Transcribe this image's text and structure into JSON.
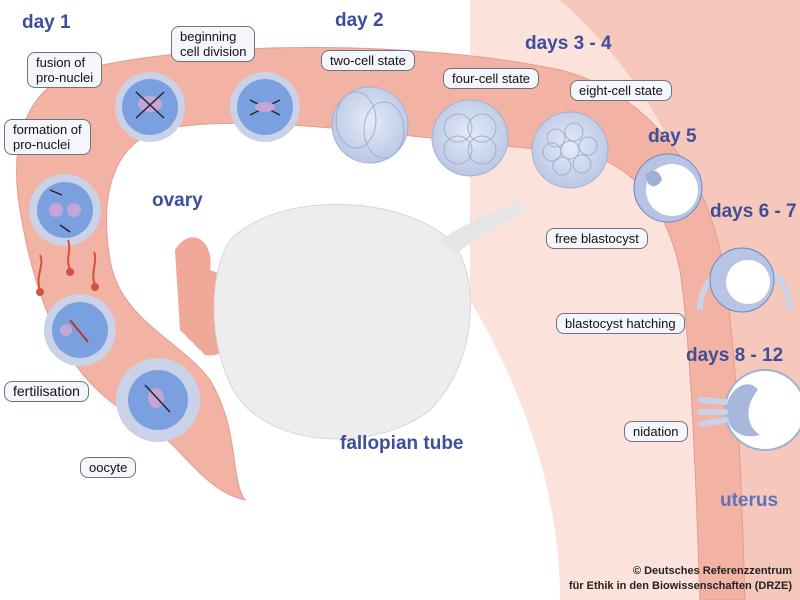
{
  "days": {
    "day1": "day 1",
    "day2": "day 2",
    "days34": "days 3 - 4",
    "day5": "day 5",
    "days67": "days 6 - 7",
    "days812": "days 8 - 12"
  },
  "labels": {
    "fusion": [
      "fusion of",
      "pro-nuclei"
    ],
    "beginning": [
      "beginning",
      "cell division"
    ],
    "two_cell": "two-cell state",
    "four_cell": "four-cell state",
    "eight_cell": "eight-cell state",
    "formation": [
      "formation of",
      "pro-nuclei"
    ],
    "free_blastocyst": "free blastocyst",
    "hatching": "blastocyst hatching",
    "fertilisation": "fertilisation",
    "nidation": "nidation",
    "oocyte": "oocyte"
  },
  "regions": {
    "ovary": "ovary",
    "fallopian_tube": "fallopian tube",
    "uterus": "uterus"
  },
  "credit": [
    "© Deutsches Referenzzentrum",
    "für Ethik in den Biowissenschaften (DRZE)"
  ],
  "colors": {
    "tube": "#f3b3a4",
    "tube_dark": "#e89a8b",
    "uterus_bg": "#fbe3dc",
    "ovary": "#ededed",
    "cell_blue": "#7aa0e0",
    "zona": "#c9d2e6",
    "title_blue": "#3d4f9a"
  }
}
